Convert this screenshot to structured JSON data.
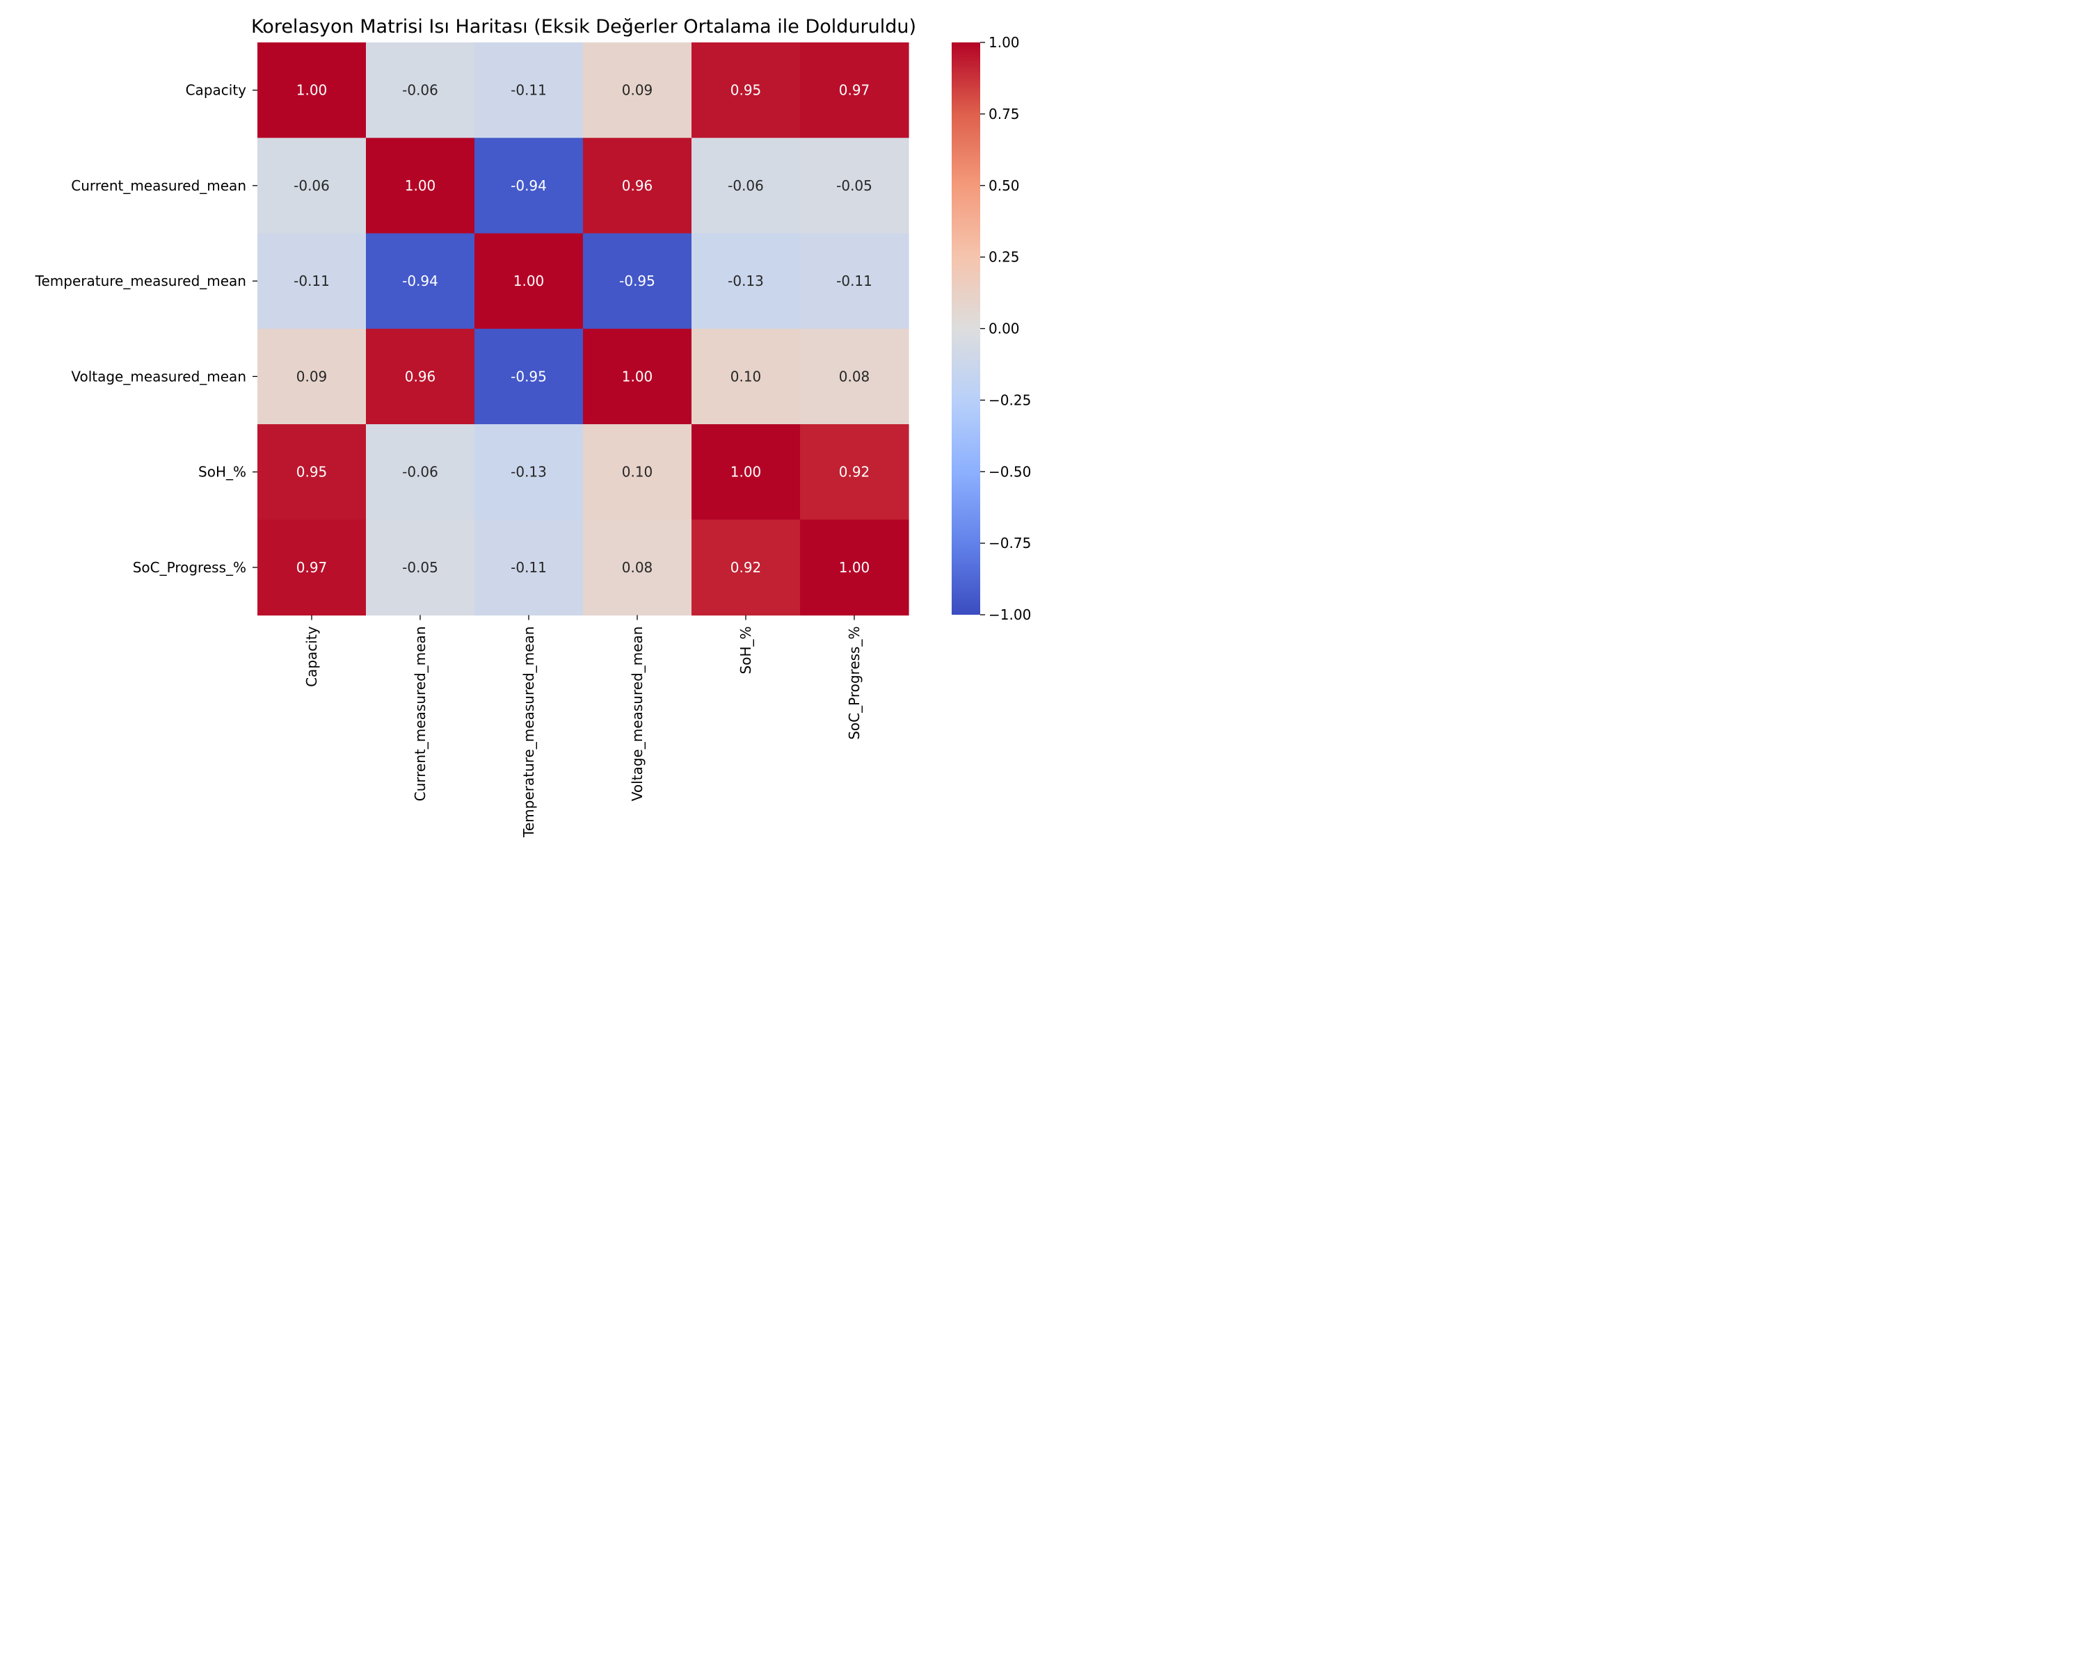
{
  "chart_data": {
    "type": "heatmap",
    "title": "Korelasyon Matrisi Isı Haritası (Eksik Değerler Ortalama ile Dolduruldu)",
    "row_labels": [
      "Capacity",
      "Current_measured_mean",
      "Temperature_measured_mean",
      "Voltage_measured_mean",
      "SoH_%",
      "SoC_Progress_%"
    ],
    "col_labels": [
      "Capacity",
      "Current_measured_mean",
      "Temperature_measured_mean",
      "Voltage_measured_mean",
      "SoH_%",
      "SoC_Progress_%"
    ],
    "values": [
      [
        1.0,
        -0.06,
        -0.11,
        0.09,
        0.95,
        0.97
      ],
      [
        -0.06,
        1.0,
        -0.94,
        0.96,
        -0.06,
        -0.05
      ],
      [
        -0.11,
        -0.94,
        1.0,
        -0.95,
        -0.13,
        -0.11
      ],
      [
        0.09,
        0.96,
        -0.95,
        1.0,
        0.1,
        0.08
      ],
      [
        0.95,
        -0.06,
        -0.13,
        0.1,
        1.0,
        0.92
      ],
      [
        0.97,
        -0.05,
        -0.11,
        0.08,
        0.92,
        1.0
      ]
    ],
    "annotation_format": "0.00",
    "colormap": "coolwarm",
    "vmin": -1.0,
    "vmax": 1.0,
    "colorbar_ticks": [
      "−1.00",
      "−0.75",
      "−0.50",
      "−0.25",
      "0.00",
      "0.25",
      "0.50",
      "0.75",
      "1.00"
    ],
    "colorbar_tick_values": [
      -1.0,
      -0.75,
      -0.5,
      -0.25,
      0.0,
      0.25,
      0.5,
      0.75,
      1.0
    ],
    "legend": "colorbar-right"
  }
}
